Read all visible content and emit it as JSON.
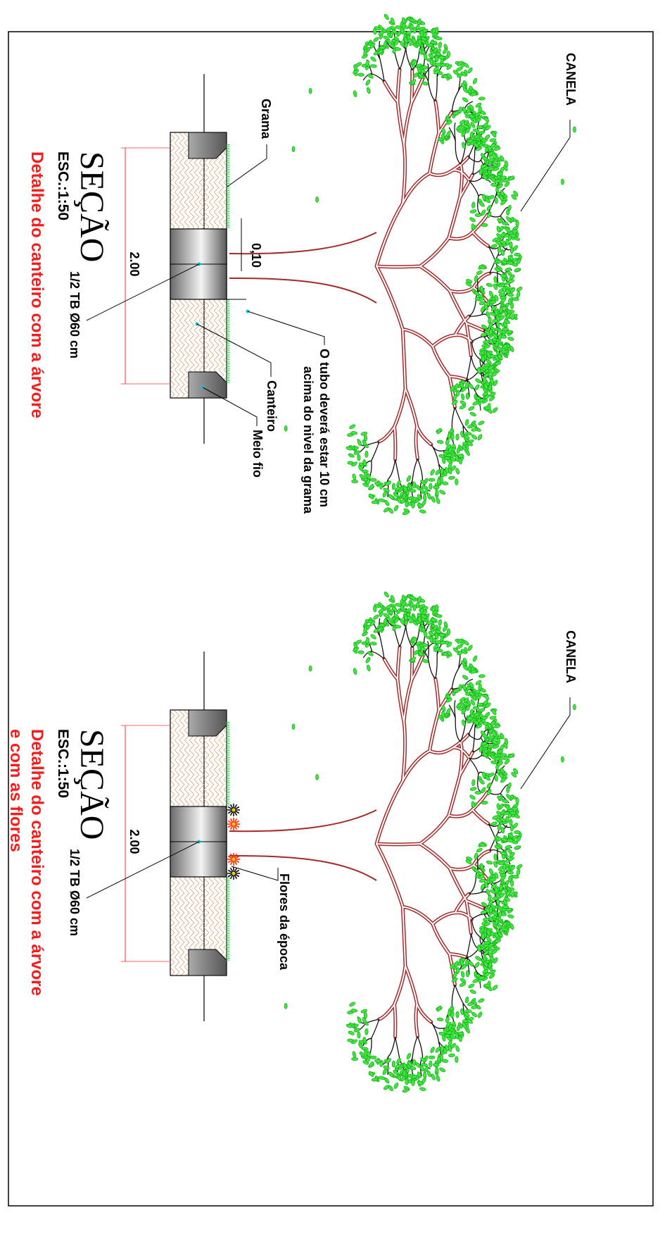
{
  "sections": [
    {
      "title": "SEÇÃO",
      "scale": "ESC.:1:50",
      "caption": [
        "Detalhe do canteiro com a árvore"
      ],
      "dimension": "2.00",
      "pipe": "1/2 TB Ø60 cm",
      "tree": "CANELA",
      "notes": {
        "grass": "Grama",
        "bed": "Canteiro",
        "curb": "Meio fio",
        "offset": "0,10",
        "tube_note": [
          "O tubo deverá estar 10 cm",
          "acima do nivel da grama"
        ]
      }
    },
    {
      "title": "SEÇÃO",
      "scale": "ESC.:1:50",
      "caption": [
        "Detalhe do canteiro com a árvore",
        "e com as flores"
      ],
      "dimension": "2.00",
      "pipe": "1/2 TB Ø60 cm",
      "tree": "CANELA",
      "notes": {
        "flowers": "Flores da época"
      }
    }
  ]
}
